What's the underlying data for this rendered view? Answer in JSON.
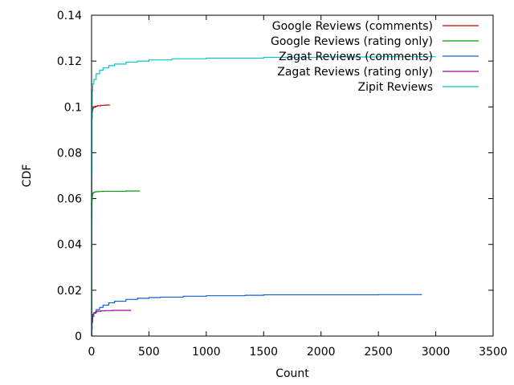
{
  "chart_data": {
    "type": "line",
    "title": "",
    "xlabel": "Count",
    "ylabel": "CDF",
    "xlim": [
      0,
      3500
    ],
    "ylim": [
      0,
      0.14
    ],
    "x_ticks": [
      0,
      500,
      1000,
      1500,
      2000,
      2500,
      3000,
      3500
    ],
    "y_ticks": [
      0,
      0.02,
      0.04,
      0.06,
      0.08,
      0.1,
      0.12,
      0.14
    ],
    "x_tick_labels": [
      "0",
      "500",
      "1000",
      "1500",
      "2000",
      "2500",
      "3000",
      "3500"
    ],
    "y_tick_labels": [
      "0",
      "0.02",
      "0.04",
      "0.06",
      "0.08",
      "0.1",
      "0.12",
      "0.14"
    ],
    "grid": false,
    "legend_position": "top-right",
    "series": [
      {
        "name": "Google Reviews (comments)",
        "color": "#cc0000",
        "x": [
          1,
          2,
          3,
          5,
          8,
          12,
          20,
          30,
          50,
          80,
          120,
          160
        ],
        "y": [
          0.076,
          0.082,
          0.095,
          0.098,
          0.099,
          0.0995,
          0.1,
          0.1003,
          0.1005,
          0.1007,
          0.1008,
          0.1008
        ]
      },
      {
        "name": "Google Reviews (rating only)",
        "color": "#00a000",
        "x": [
          1,
          2,
          3,
          5,
          8,
          12,
          20,
          35,
          60,
          100,
          200,
          300,
          420
        ],
        "y": [
          0.05,
          0.056,
          0.059,
          0.061,
          0.062,
          0.0625,
          0.0628,
          0.063,
          0.0631,
          0.0632,
          0.0632,
          0.0633,
          0.0633
        ]
      },
      {
        "name": "Zagat Reviews (comments)",
        "color": "#1060d0",
        "x": [
          1,
          5,
          10,
          20,
          40,
          70,
          100,
          150,
          200,
          300,
          400,
          500,
          600,
          800,
          1000,
          1340,
          1500,
          2000,
          2500,
          2880
        ],
        "y": [
          0.003,
          0.006,
          0.0085,
          0.01,
          0.0115,
          0.0125,
          0.0135,
          0.0145,
          0.0152,
          0.016,
          0.0165,
          0.0168,
          0.017,
          0.0174,
          0.0176,
          0.0178,
          0.018,
          0.018,
          0.0181,
          0.0181
        ]
      },
      {
        "name": "Zagat Reviews (rating only)",
        "color": "#a000a0",
        "x": [
          1,
          3,
          6,
          10,
          20,
          35,
          50,
          80,
          120,
          180,
          250,
          345
        ],
        "y": [
          0.005,
          0.007,
          0.0085,
          0.0095,
          0.0102,
          0.0106,
          0.0108,
          0.011,
          0.0111,
          0.0112,
          0.0112,
          0.0112
        ]
      },
      {
        "name": "Zipit Reviews",
        "color": "#00c8c8",
        "x": [
          1,
          3,
          6,
          10,
          20,
          40,
          70,
          100,
          150,
          200,
          300,
          400,
          500,
          700,
          1000,
          1500,
          2000,
          2500,
          3000
        ],
        "y": [
          0.07,
          0.1,
          0.107,
          0.11,
          0.112,
          0.1145,
          0.116,
          0.117,
          0.118,
          0.1187,
          0.1195,
          0.12,
          0.1205,
          0.121,
          0.1213,
          0.1216,
          0.1218,
          0.1219,
          0.122
        ]
      }
    ]
  }
}
